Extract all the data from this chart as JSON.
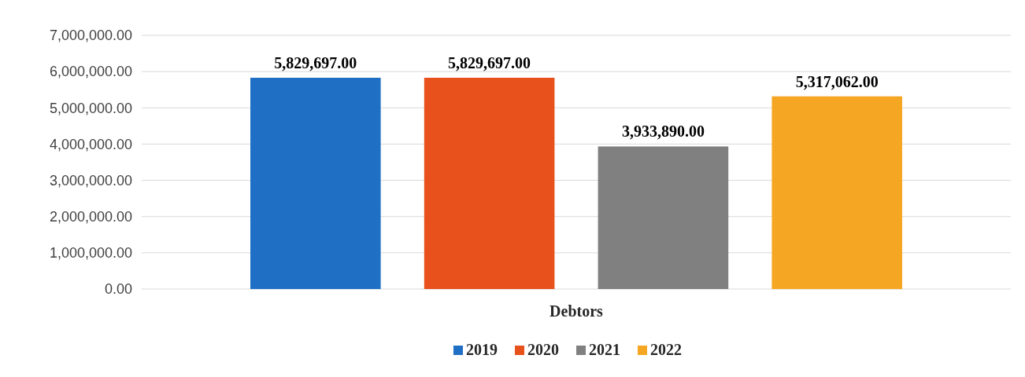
{
  "chart_data": {
    "type": "bar",
    "categories": [
      "Debtors"
    ],
    "series": [
      {
        "name": "2019",
        "color": "#1f6fc5",
        "values": [
          5829697
        ],
        "value_labels": [
          "5,829,697.00"
        ]
      },
      {
        "name": "2020",
        "color": "#e8501c",
        "values": [
          5829697
        ],
        "value_labels": [
          "5,829,697.00"
        ]
      },
      {
        "name": "2021",
        "color": "#808080",
        "values": [
          3933890
        ],
        "value_labels": [
          "3,933,890.00"
        ]
      },
      {
        "name": "2022",
        "color": "#f5a623",
        "values": [
          5317062
        ],
        "value_labels": [
          "5,317,062.00"
        ]
      }
    ],
    "ylim": [
      0,
      7000000
    ],
    "yticks": [
      {
        "value": 0,
        "label": "0.00"
      },
      {
        "value": 1000000,
        "label": "1,000,000.00"
      },
      {
        "value": 2000000,
        "label": "2,000,000.00"
      },
      {
        "value": 3000000,
        "label": "3,000,000.00"
      },
      {
        "value": 4000000,
        "label": "4,000,000.00"
      },
      {
        "value": 5000000,
        "label": "5,000,000.00"
      },
      {
        "value": 6000000,
        "label": "6,000,000.00"
      },
      {
        "value": 7000000,
        "label": "7,000,000.00"
      }
    ],
    "grid": "y",
    "legend": "bottom"
  }
}
